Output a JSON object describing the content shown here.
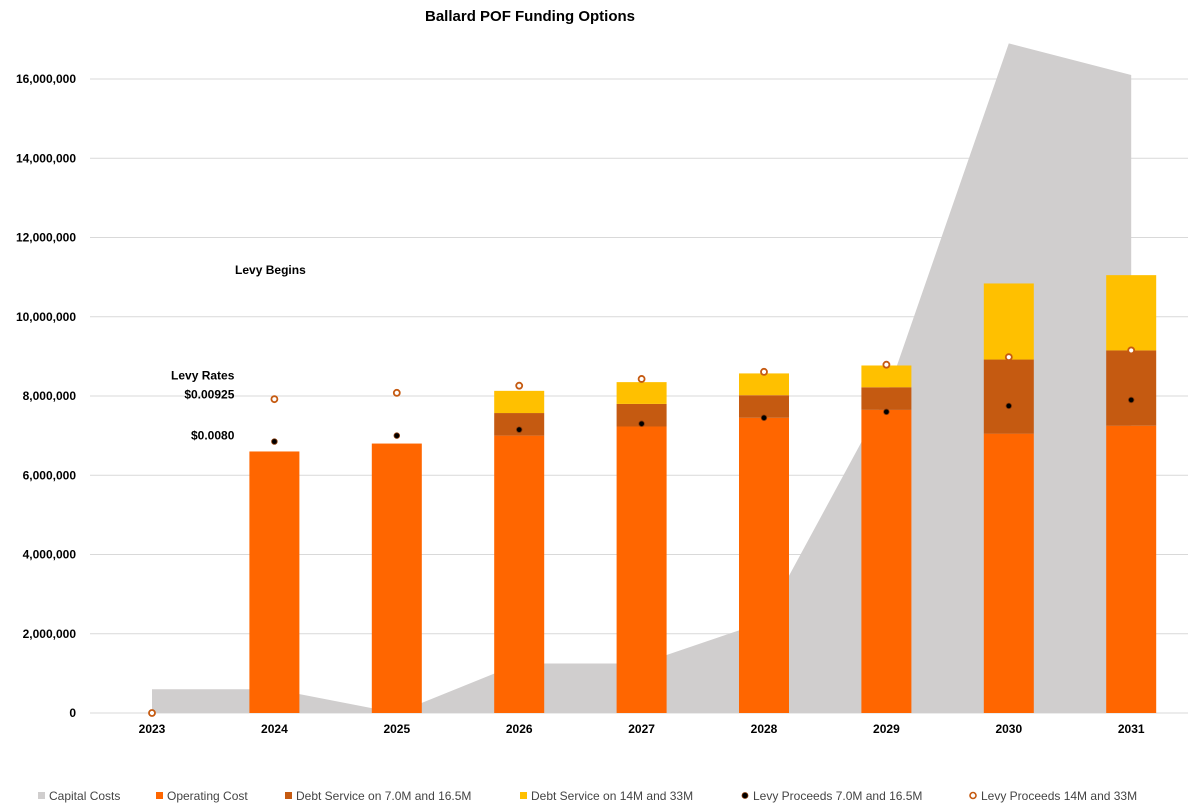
{
  "chart_data": {
    "type": "bar",
    "title": "Ballard POF Funding Options",
    "categories": [
      "2023",
      "2024",
      "2025",
      "2026",
      "2027",
      "2028",
      "2029",
      "2030",
      "2031"
    ],
    "ylim": [
      0,
      17000000
    ],
    "yticks": [
      0,
      2000000,
      4000000,
      6000000,
      8000000,
      10000000,
      12000000,
      14000000,
      16000000
    ],
    "ytick_labels": [
      "0",
      "2,000,000",
      "4,000,000",
      "6,000,000",
      "8,000,000",
      "10,000,000",
      "12,000,000",
      "14,000,000",
      "16,000,000"
    ],
    "grid": true,
    "legend_position": "bottom",
    "area_series": {
      "name": "Capital Costs",
      "color": "#d0cece",
      "values": [
        600000,
        600000,
        0,
        1250000,
        1250000,
        2300000,
        8000000,
        16900000,
        16100000
      ]
    },
    "series": [
      {
        "name": "Operating Cost",
        "color": "#ff6600",
        "stack": true,
        "values": [
          0,
          6600000,
          6800000,
          7000000,
          7230000,
          7450000,
          7650000,
          7050000,
          7250000
        ]
      },
      {
        "name": "Debt Service on 7.0M and 16.5M",
        "color": "#c55a11",
        "stack": true,
        "values": [
          0,
          0,
          0,
          570000,
          570000,
          570000,
          570000,
          1870000,
          1900000
        ]
      },
      {
        "name": "Debt Service on 14M and 33M",
        "color": "#ffc000",
        "stack": true,
        "values": [
          0,
          0,
          0,
          560000,
          550000,
          550000,
          550000,
          1920000,
          1900000
        ]
      }
    ],
    "point_series": [
      {
        "name": "Levy Proceeds 7.0M and 16.5M",
        "marker": "filled",
        "color": "#000000",
        "edge": "#8a3a0a",
        "values": [
          null,
          6850000,
          7000000,
          7150000,
          7300000,
          7450000,
          7600000,
          7750000,
          7900000
        ]
      },
      {
        "name": "Levy Proceeds 14M and 33M",
        "marker": "hollow",
        "color": "#ffffff",
        "edge": "#c55a11",
        "values": [
          0,
          7920000,
          8080000,
          8260000,
          8430000,
          8610000,
          8790000,
          8980000,
          9150000
        ]
      }
    ],
    "annotations": [
      {
        "text": "Levy Begins",
        "x": "2024",
        "y": 11080000
      },
      {
        "text": "Levy Rates",
        "x": "2024",
        "y": 8420000
      },
      {
        "text": "$0.00925",
        "x": "2024",
        "y": 7940000
      },
      {
        "text": "$0.0080",
        "x": "2024",
        "y": 6900000
      }
    ]
  }
}
